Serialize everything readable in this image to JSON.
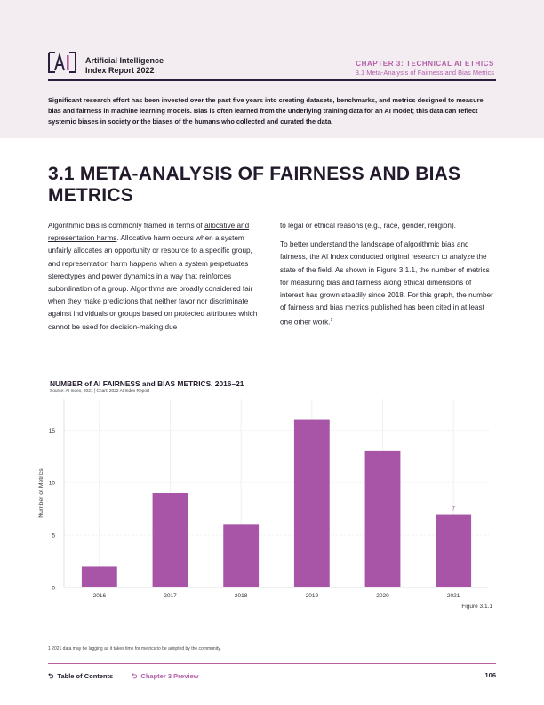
{
  "header": {
    "report_title_line1": "Artificial Intelligence",
    "report_title_line2": "Index Report 2022",
    "chapter_label": "CHAPTER 3: TECHNICAL AI ETHICS",
    "chapter_sub": "3.1 Meta-Analysis of Fairness and Bias Metrics",
    "intro": "Significant research effort has been invested over the past five years into creating datasets, benchmarks, and metrics designed to measure bias and fairness in machine learning models. Bias is often learned from the underlying training data for an AI model; this data can reflect systemic biases in society or the biases of the humans who collected and curated the data.",
    "brand_color": "#b35fa8",
    "dark_color": "#2a1f3d"
  },
  "section": {
    "title": "3.1 META-ANALYSIS OF FAIRNESS AND BIAS METRICS",
    "left_para_pre": "Algorithmic bias is commonly framed in terms of ",
    "left_link": "allocative and representation harms",
    "left_para_post": ". Allocative harm occurs when a system unfairly allocates an opportunity or resource to a specific group, and representation harm happens when a system perpetuates stereotypes and power dynamics in a way that reinforces subordination of a group. Algorithms are broadly considered fair when they make predictions that neither favor nor discriminate against individuals or groups based on protected attributes which cannot be used for decision-making due",
    "right_para1": "to legal or ethical reasons (e.g., race, gender, religion).",
    "right_para2": "To better understand the landscape of algorithmic bias and fairness, the AI Index conducted original research to analyze the state of the field. As shown in Figure 3.1.1, the number of metrics for measuring bias and fairness along ethical dimensions of interest has grown steadily since 2018. For this graph, the number of fairness and bias metrics published has been cited in at least one other work.",
    "right_para2_sup": "1"
  },
  "chart_data": {
    "type": "bar",
    "title": "NUMBER of AI FAIRNESS and BIAS METRICS, 2016–21",
    "source": "Source: AI Index, 2021 | Chart: 2022 AI Index Report",
    "xlabel": "",
    "ylabel": "Number of Metrics",
    "categories": [
      "2016",
      "2017",
      "2018",
      "2019",
      "2020",
      "2021"
    ],
    "values": [
      2,
      9,
      6,
      16,
      13,
      7
    ],
    "annotations": [
      {
        "category": "2021",
        "text": "7"
      }
    ],
    "ylim": [
      0,
      18
    ],
    "yticks": [
      0,
      5,
      10,
      15
    ],
    "bar_color": "#a855a8",
    "grid": true
  },
  "figure_label": "Figure 3.1.1",
  "footnote": "1 2021 data may be lagging as it takes time for metrics to be adopted by the community.",
  "footer": {
    "toc": "Table of Contents",
    "chapter_preview": "Chapter 3 Preview",
    "page_number": "106"
  }
}
